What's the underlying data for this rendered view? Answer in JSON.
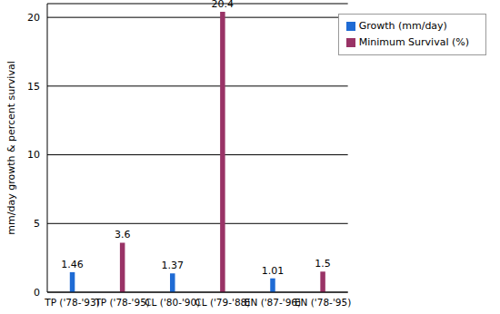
{
  "chart_data": {
    "type": "bar",
    "y_label": "mm/day growth & percent survival",
    "categories": [
      "TP ('78-'93)",
      "TP ('78-'95)",
      "CL ('80-'90)",
      "CL ('79-'88)",
      "EN ('87-'96)",
      "EN ('78-'95)"
    ],
    "series": [
      {
        "name": "Growth (mm/day)",
        "color": "#1f6bd4",
        "values": [
          1.46,
          null,
          1.37,
          null,
          1.01,
          null
        ]
      },
      {
        "name": "Minimum Survival (%)",
        "color": "#993366",
        "values": [
          null,
          3.6,
          null,
          20.4,
          null,
          1.5
        ]
      }
    ],
    "ylim": [
      0,
      21
    ],
    "yticks": [
      0,
      5,
      10,
      15,
      20
    ],
    "grid": true,
    "legend": "top-right",
    "data_labels": true
  }
}
